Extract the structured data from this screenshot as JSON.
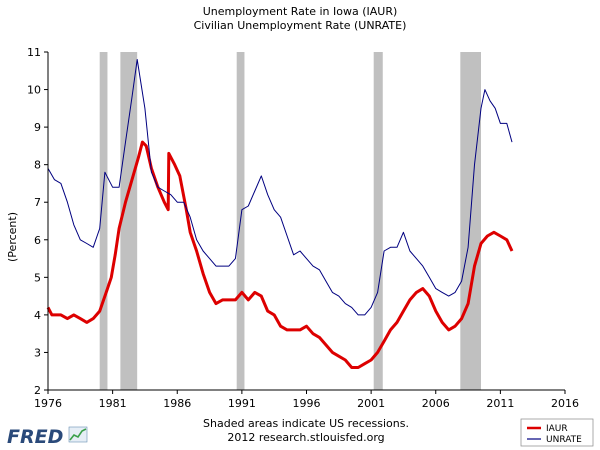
{
  "chart_data": {
    "type": "line",
    "title": "Unemployment Rate in Iowa (IAUR)",
    "subtitle": "Civilian Unemployment Rate (UNRATE)",
    "ylabel": "(Percent)",
    "xlabel": "",
    "xlim": [
      1976,
      2016
    ],
    "ylim": [
      2,
      11
    ],
    "xticks": [
      "1976",
      "1981",
      "1986",
      "1991",
      "1996",
      "2001",
      "2006",
      "2011",
      "2016"
    ],
    "yticks": [
      "2",
      "3",
      "4",
      "5",
      "6",
      "7",
      "8",
      "9",
      "10",
      "11"
    ],
    "recessions": [
      [
        1980.0,
        1980.6
      ],
      [
        1981.6,
        1982.9
      ],
      [
        1990.6,
        1991.2
      ],
      [
        2001.2,
        2001.9
      ],
      [
        2007.9,
        2009.5
      ]
    ],
    "series": [
      {
        "name": "IAUR",
        "color": "#dd0000",
        "points": [
          [
            1976.0,
            4.2
          ],
          [
            1976.3,
            4.0
          ],
          [
            1977.0,
            4.0
          ],
          [
            1977.5,
            3.9
          ],
          [
            1978.0,
            4.0
          ],
          [
            1978.5,
            3.9
          ],
          [
            1979.0,
            3.8
          ],
          [
            1979.5,
            3.9
          ],
          [
            1980.0,
            4.1
          ],
          [
            1980.5,
            4.6
          ],
          [
            1980.9,
            5.0
          ],
          [
            1981.2,
            5.6
          ],
          [
            1981.5,
            6.3
          ],
          [
            1982.0,
            7.0
          ],
          [
            1982.5,
            7.6
          ],
          [
            1983.0,
            8.2
          ],
          [
            1983.3,
            8.6
          ],
          [
            1983.6,
            8.5
          ],
          [
            1984.0,
            7.9
          ],
          [
            1984.5,
            7.4
          ],
          [
            1985.0,
            7.0
          ],
          [
            1985.3,
            6.8
          ],
          [
            1985.35,
            8.3
          ],
          [
            1985.8,
            8.0
          ],
          [
            1986.2,
            7.7
          ],
          [
            1986.7,
            6.8
          ],
          [
            1987.0,
            6.2
          ],
          [
            1987.5,
            5.7
          ],
          [
            1988.0,
            5.1
          ],
          [
            1988.5,
            4.6
          ],
          [
            1989.0,
            4.3
          ],
          [
            1989.5,
            4.4
          ],
          [
            1990.5,
            4.4
          ],
          [
            1991.0,
            4.6
          ],
          [
            1991.5,
            4.4
          ],
          [
            1992.0,
            4.6
          ],
          [
            1992.5,
            4.5
          ],
          [
            1993.0,
            4.1
          ],
          [
            1993.5,
            4.0
          ],
          [
            1994.0,
            3.7
          ],
          [
            1994.5,
            3.6
          ],
          [
            1995.0,
            3.6
          ],
          [
            1995.5,
            3.6
          ],
          [
            1996.0,
            3.7
          ],
          [
            1996.5,
            3.5
          ],
          [
            1997.0,
            3.4
          ],
          [
            1997.5,
            3.2
          ],
          [
            1998.0,
            3.0
          ],
          [
            1998.5,
            2.9
          ],
          [
            1999.0,
            2.8
          ],
          [
            1999.5,
            2.6
          ],
          [
            2000.0,
            2.6
          ],
          [
            2000.5,
            2.7
          ],
          [
            2001.0,
            2.8
          ],
          [
            2001.5,
            3.0
          ],
          [
            2002.0,
            3.3
          ],
          [
            2002.5,
            3.6
          ],
          [
            2003.0,
            3.8
          ],
          [
            2003.5,
            4.1
          ],
          [
            2004.0,
            4.4
          ],
          [
            2004.5,
            4.6
          ],
          [
            2005.0,
            4.7
          ],
          [
            2005.5,
            4.5
          ],
          [
            2006.0,
            4.1
          ],
          [
            2006.5,
            3.8
          ],
          [
            2007.0,
            3.6
          ],
          [
            2007.5,
            3.7
          ],
          [
            2008.0,
            3.9
          ],
          [
            2008.5,
            4.3
          ],
          [
            2009.0,
            5.3
          ],
          [
            2009.5,
            5.9
          ],
          [
            2010.0,
            6.1
          ],
          [
            2010.5,
            6.2
          ],
          [
            2011.0,
            6.1
          ],
          [
            2011.5,
            6.0
          ],
          [
            2011.9,
            5.7
          ]
        ]
      },
      {
        "name": "UNRATE",
        "color": "#000080",
        "points": [
          [
            1976.0,
            7.9
          ],
          [
            1976.5,
            7.6
          ],
          [
            1977.0,
            7.5
          ],
          [
            1977.5,
            7.0
          ],
          [
            1978.0,
            6.4
          ],
          [
            1978.5,
            6.0
          ],
          [
            1979.0,
            5.9
          ],
          [
            1979.5,
            5.8
          ],
          [
            1980.0,
            6.3
          ],
          [
            1980.4,
            7.8
          ],
          [
            1981.0,
            7.4
          ],
          [
            1981.5,
            7.4
          ],
          [
            1982.0,
            8.6
          ],
          [
            1982.5,
            9.8
          ],
          [
            1982.9,
            10.8
          ],
          [
            1983.5,
            9.5
          ],
          [
            1984.0,
            7.8
          ],
          [
            1984.5,
            7.4
          ],
          [
            1985.0,
            7.3
          ],
          [
            1985.5,
            7.2
          ],
          [
            1986.0,
            7.0
          ],
          [
            1986.5,
            7.0
          ],
          [
            1987.0,
            6.6
          ],
          [
            1987.5,
            6.0
          ],
          [
            1988.0,
            5.7
          ],
          [
            1988.5,
            5.5
          ],
          [
            1989.0,
            5.3
          ],
          [
            1989.5,
            5.3
          ],
          [
            1990.0,
            5.3
          ],
          [
            1990.5,
            5.5
          ],
          [
            1991.0,
            6.8
          ],
          [
            1991.5,
            6.9
          ],
          [
            1992.0,
            7.3
          ],
          [
            1992.5,
            7.7
          ],
          [
            1993.0,
            7.2
          ],
          [
            1993.5,
            6.8
          ],
          [
            1994.0,
            6.6
          ],
          [
            1994.5,
            6.1
          ],
          [
            1995.0,
            5.6
          ],
          [
            1995.5,
            5.7
          ],
          [
            1996.0,
            5.5
          ],
          [
            1996.5,
            5.3
          ],
          [
            1997.0,
            5.2
          ],
          [
            1997.5,
            4.9
          ],
          [
            1998.0,
            4.6
          ],
          [
            1998.5,
            4.5
          ],
          [
            1999.0,
            4.3
          ],
          [
            1999.5,
            4.2
          ],
          [
            2000.0,
            4.0
          ],
          [
            2000.5,
            4.0
          ],
          [
            2001.0,
            4.2
          ],
          [
            2001.5,
            4.6
          ],
          [
            2002.0,
            5.7
          ],
          [
            2002.5,
            5.8
          ],
          [
            2003.0,
            5.8
          ],
          [
            2003.5,
            6.2
          ],
          [
            2004.0,
            5.7
          ],
          [
            2004.5,
            5.5
          ],
          [
            2005.0,
            5.3
          ],
          [
            2005.5,
            5.0
          ],
          [
            2006.0,
            4.7
          ],
          [
            2006.5,
            4.6
          ],
          [
            2007.0,
            4.5
          ],
          [
            2007.5,
            4.6
          ],
          [
            2008.0,
            4.9
          ],
          [
            2008.5,
            5.8
          ],
          [
            2009.0,
            8.0
          ],
          [
            2009.5,
            9.5
          ],
          [
            2009.8,
            10.0
          ],
          [
            2010.2,
            9.7
          ],
          [
            2010.6,
            9.5
          ],
          [
            2011.0,
            9.1
          ],
          [
            2011.5,
            9.1
          ],
          [
            2011.9,
            8.6
          ]
        ]
      }
    ],
    "legend": [
      "IAUR",
      "UNRATE"
    ],
    "legend_position": "bottom-right"
  },
  "footer": {
    "line1": "Shaded areas indicate US recessions.",
    "line2": "2012 research.stlouisfed.org"
  },
  "logo": {
    "text": "FRED"
  },
  "colors": {
    "recession": "#c0c0c0",
    "axis": "#000000"
  }
}
